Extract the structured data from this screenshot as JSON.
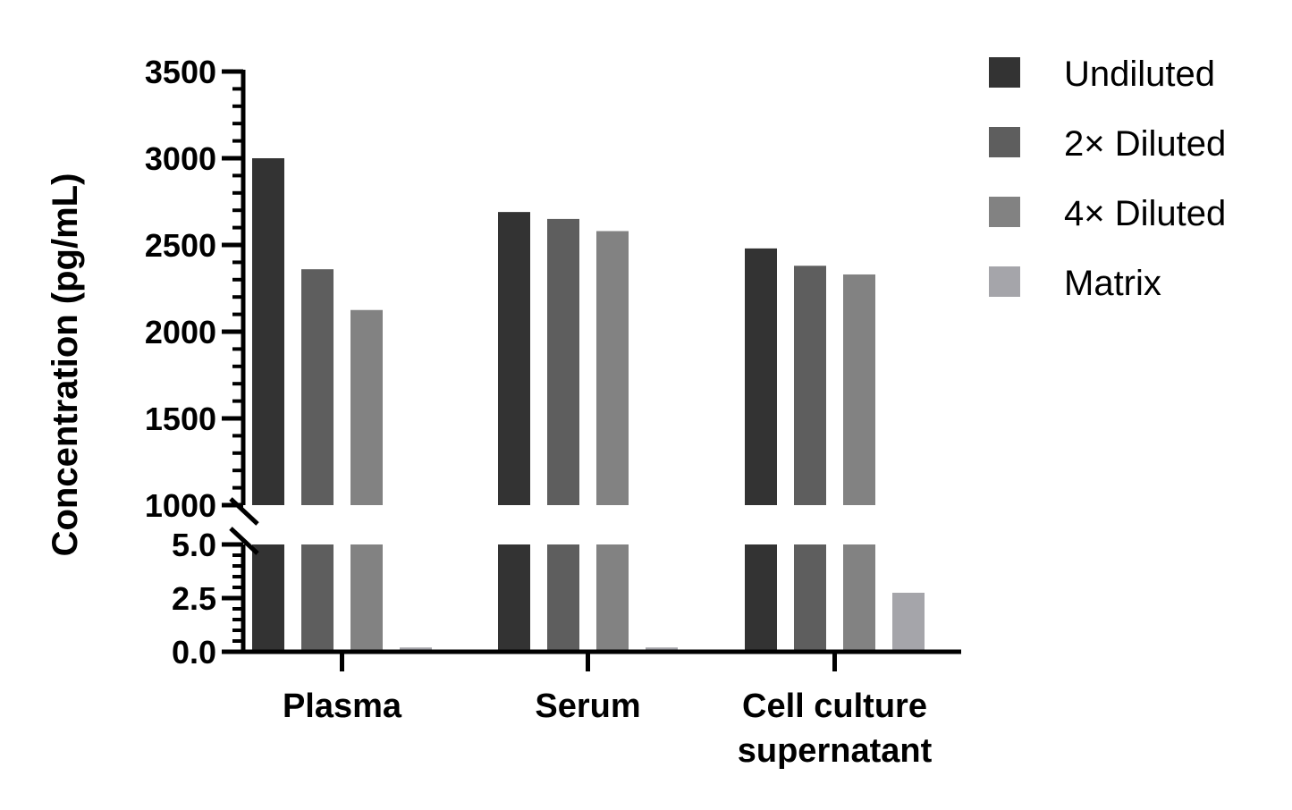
{
  "chart_data": {
    "type": "bar",
    "title": "",
    "xlabel": "",
    "ylabel": "Concentration (pg/mL)",
    "categories": [
      "Plasma",
      "Serum",
      "Cell culture supernatant"
    ],
    "category_lines": [
      [
        "Plasma"
      ],
      [
        "Serum"
      ],
      [
        "Cell culture",
        "supernatant"
      ]
    ],
    "series": [
      {
        "name": "Undiluted",
        "color": "#333333",
        "values": [
          3000,
          2690,
          2480
        ]
      },
      {
        "name": "2× Diluted",
        "color": "#5e5e5e",
        "values": [
          2360,
          2650,
          2380
        ]
      },
      {
        "name": "4× Diluted",
        "color": "#828282",
        "values": [
          2125,
          2580,
          2330
        ]
      },
      {
        "name": "Matrix",
        "color": "#a5a5aa",
        "values": [
          0.2,
          0.2,
          2.75
        ]
      }
    ],
    "y_axis_broken": true,
    "y_segments": [
      {
        "range": [
          0,
          5
        ],
        "ticks": [
          "0.0",
          "2.5",
          "5.0"
        ],
        "tick_values": [
          0,
          2.5,
          5
        ]
      },
      {
        "range": [
          1000,
          3500
        ],
        "ticks": [
          "1000",
          "1500",
          "2000",
          "2500",
          "3000",
          "3500"
        ],
        "tick_values": [
          1000,
          1500,
          2000,
          2500,
          3000,
          3500
        ]
      }
    ],
    "legend_position": "top-right",
    "grid": false
  }
}
